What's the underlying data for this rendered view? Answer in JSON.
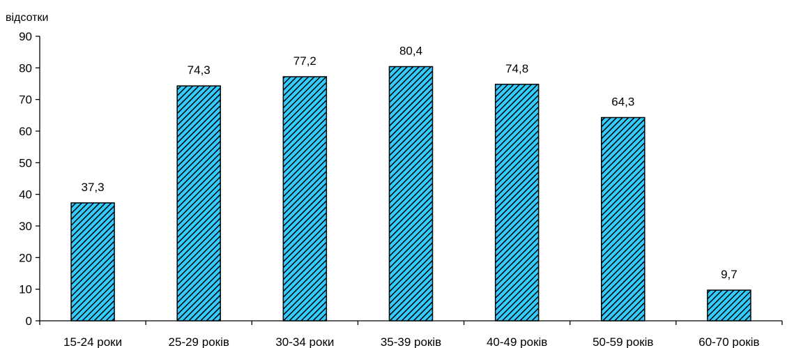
{
  "chart_data": {
    "type": "bar",
    "y_unit_label": "відсотки",
    "categories": [
      "15-24 роки",
      "25-29 років",
      "30-34 роки",
      "35-39 років",
      "40-49 років",
      "50-59 років",
      "60-70 років"
    ],
    "values": [
      37.3,
      74.3,
      77.2,
      80.4,
      74.8,
      64.3,
      9.7
    ],
    "value_labels": [
      "37,3",
      "74,3",
      "77,2",
      "80,4",
      "74,8",
      "64,3",
      "9,7"
    ],
    "ylim": [
      0,
      90
    ],
    "yticks": [
      0,
      10,
      20,
      30,
      40,
      50,
      60,
      70,
      80,
      90
    ],
    "grid": false,
    "legend": "none",
    "bar_fill_color": "#33ccff",
    "bar_hatch_color": "#000000",
    "bar_outline_color": "#000000"
  }
}
